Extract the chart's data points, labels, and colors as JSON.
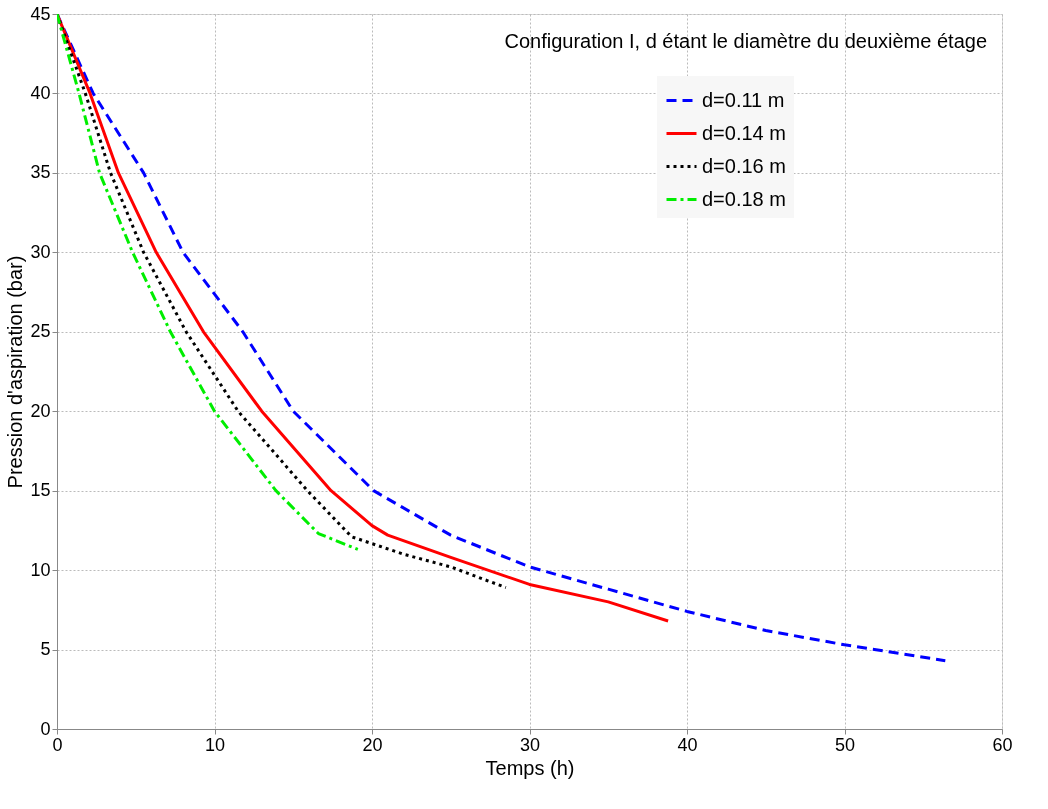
{
  "chart_data": {
    "type": "line",
    "xlabel": "Temps  (h)",
    "ylabel": "Pression d'aspiration (bar)",
    "annotations": [
      "Configuration I, d étant le diamètre du deuxième étage"
    ],
    "xlim": [
      0,
      60
    ],
    "xticks": [
      0,
      10,
      20,
      30,
      40,
      50,
      60
    ],
    "ylim": [
      0,
      45
    ],
    "yticks": [
      0,
      5,
      10,
      15,
      20,
      25,
      30,
      35,
      40,
      45
    ],
    "grid": true,
    "legend": "top right",
    "marker": "none",
    "series": [
      {
        "name": "d=0.11 m",
        "color": "#0000ff",
        "line_style": "dashed",
        "x": [
          0,
          2.3,
          5.5,
          8.0,
          11.8,
          15.0,
          20.1,
          25,
          30,
          35,
          40,
          45,
          50,
          56.4
        ],
        "values": [
          45,
          40,
          35,
          30,
          25,
          20,
          15,
          12.2,
          10.2,
          8.8,
          7.4,
          6.2,
          5.3,
          4.3
        ]
      },
      {
        "name": "d=0.14 m",
        "color": "#ff0000",
        "line_style": "solid",
        "x": [
          0,
          2.1,
          3.9,
          6.3,
          9.3,
          13.0,
          17.4,
          20,
          21,
          25,
          30,
          35,
          38.8
        ],
        "values": [
          45,
          40,
          35,
          30,
          25,
          20,
          15,
          12.8,
          12.2,
          10.8,
          9.1,
          8.0,
          6.8
        ]
      },
      {
        "name": "d=0.16 m",
        "color": "#000000",
        "line_style": "dotted",
        "x": [
          0,
          1.8,
          3.4,
          5.5,
          8.2,
          11.5,
          15.9,
          18.7,
          22,
          25,
          28.5
        ],
        "values": [
          45,
          40,
          35,
          30,
          25,
          20,
          15,
          12.1,
          11.0,
          10.2,
          8.9
        ]
      },
      {
        "name": "d=0.18 m",
        "color": "#00ee00",
        "line_style": "dashdot",
        "x": [
          0,
          1.4,
          2.7,
          4.8,
          7.2,
          10.0,
          13.9,
          16.6,
          19.1
        ],
        "values": [
          45,
          40,
          35,
          30,
          25,
          20,
          15,
          12.3,
          11.3
        ]
      }
    ]
  }
}
